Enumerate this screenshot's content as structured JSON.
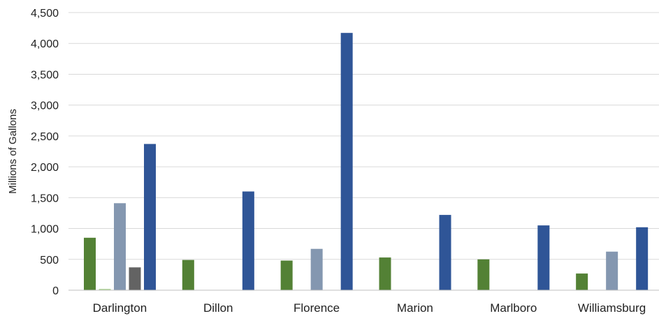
{
  "chart_data": {
    "type": "bar",
    "title": "",
    "xlabel": "",
    "ylabel": "Millions of Gallons",
    "ylim": [
      0,
      4500
    ],
    "yticks": [
      0,
      500,
      1000,
      1500,
      2000,
      2500,
      3000,
      3500,
      4000,
      4500
    ],
    "ytick_labels": [
      "0",
      "500",
      "1,000",
      "1,500",
      "2,000",
      "2,500",
      "3,000",
      "3,500",
      "4,000",
      "4,500"
    ],
    "grid": true,
    "legend": "none",
    "categories": [
      "Darlington",
      "Dillon",
      "Florence",
      "Marion",
      "Marlboro",
      "Williamsburg"
    ],
    "series": [
      {
        "color": "#538135",
        "values": [
          850,
          490,
          480,
          530,
          500,
          270
        ]
      },
      {
        "color": "#a9d18e",
        "values": [
          20,
          0,
          0,
          0,
          0,
          0
        ]
      },
      {
        "color": "#8497b0",
        "values": [
          1410,
          0,
          670,
          0,
          0,
          625
        ]
      },
      {
        "color": "#636363",
        "values": [
          370,
          0,
          0,
          0,
          0,
          0
        ]
      },
      {
        "color": "#2f5597",
        "values": [
          2370,
          1600,
          4170,
          1220,
          1050,
          1020
        ]
      }
    ]
  }
}
